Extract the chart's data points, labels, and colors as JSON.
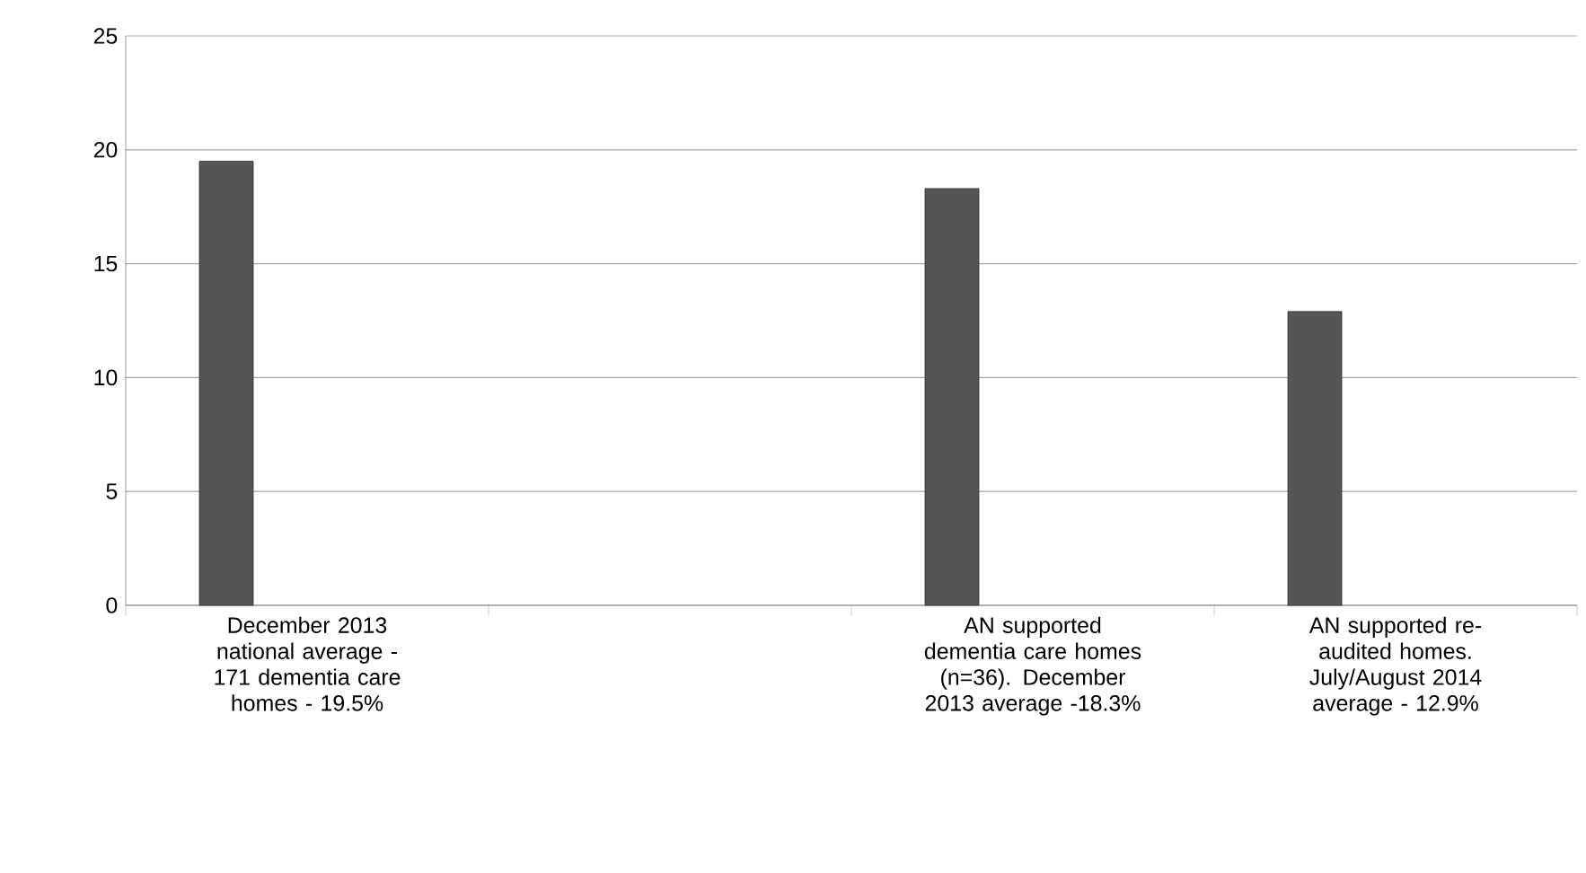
{
  "chart_data": {
    "type": "bar",
    "categories": [
      "December 2013 national average - 171 dementia care homes - 19.5%",
      null,
      "AN supported dementia care homes  (n=36). December 2013 average -18.3%",
      "AN supported re-audited homes. July/August 2014 average - 12.9%"
    ],
    "values": [
      19.5,
      null,
      18.3,
      12.9
    ],
    "color": "#555555",
    "ylim": [
      0,
      25
    ],
    "yticks": [
      0,
      5,
      10,
      15,
      20,
      25
    ],
    "grid": "y"
  }
}
